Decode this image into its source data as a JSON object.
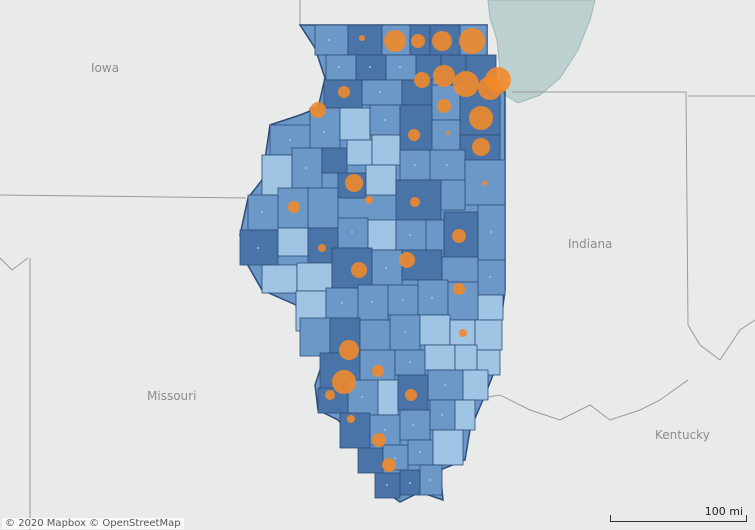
{
  "map": {
    "labels": {
      "iowa": "Iowa",
      "indiana": "Indiana",
      "missouri": "Missouri",
      "kentucky": "Kentucky"
    },
    "colors": {
      "background": "#e9eaea",
      "water": "#bdd0d0",
      "state_border": "#9a9a9a",
      "county_dark": "#4a74a8",
      "county_mid": "#6c98c7",
      "county_light": "#9fc4e4",
      "county_border": "#2d4d78",
      "bubble": "#f08a2b"
    }
  },
  "attribution": "© 2020 Mapbox  © OpenStreetMap",
  "scale": {
    "label": "100 mi"
  }
}
